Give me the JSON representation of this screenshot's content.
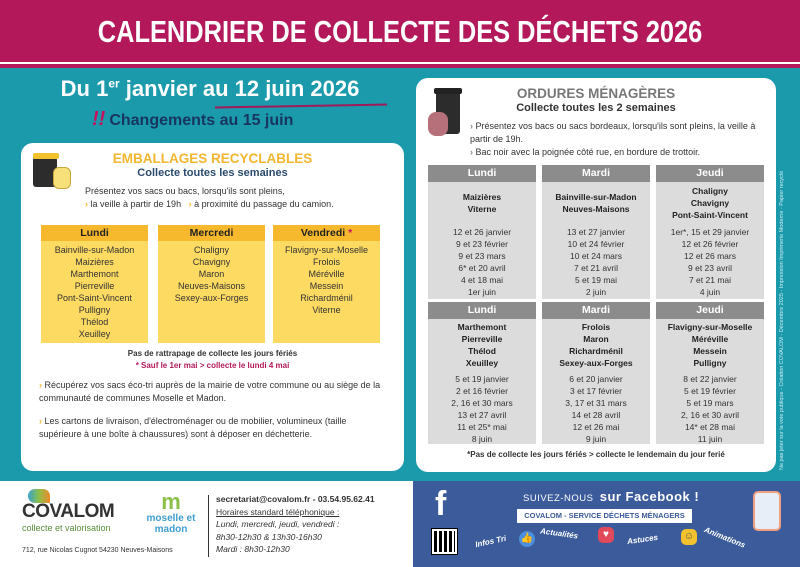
{
  "header": {
    "title": "CALENDRIER DE COLLECTE DES DÉCHETS 2026"
  },
  "period": {
    "prefix": "Du 1",
    "sup": "er",
    "rest": " janvier au 12 juin 2026",
    "changes": "Changements au 15 juin"
  },
  "recyclables": {
    "title": "EMBALLAGES RECYCLABLES",
    "subtitle": "Collecte toutes les semaines",
    "intro": "Présentez vos sacs ou bacs, lorsqu'ils sont pleins,",
    "hint1": "la veille à partir de 19h",
    "hint2": "à proximité du passage du camion.",
    "columns": [
      {
        "day": "Lundi",
        "star": "",
        "towns": [
          "Bainville-sur-Madon",
          "Maizières",
          "Marthemont",
          "Pierreville",
          "Pont-Saint-Vincent",
          "Pulligny",
          "Thélod",
          "Xeuilley"
        ]
      },
      {
        "day": "Mercredi",
        "star": "",
        "towns": [
          "Chaligny",
          "Chavigny",
          "Maron",
          "Neuves-Maisons",
          "Sexey-aux-Forges"
        ]
      },
      {
        "day": "Vendredi",
        "star": "*",
        "towns": [
          "Flavigny-sur-Moselle",
          "Frolois",
          "Méréville",
          "Messein",
          "Richardménil",
          "Viterne"
        ]
      }
    ],
    "note": "Pas de rattrapage de collecte les jours fériés",
    "note2": "* Sauf le 1er mai  > collecte le lundi 4 mai",
    "info1": "Récupérez vos sacs éco-tri auprès de la mairie de votre commune ou au siège de la communauté de communes Moselle et Madon.",
    "info2": "Les cartons de livraison, d'électroménager ou de mobilier, volumineux (taille supérieure à une boîte à chaussures) sont à déposer en déchetterie."
  },
  "ordures": {
    "title": "ORDURES MÉNAGÈRES",
    "subtitle": "Collecte toutes les 2 semaines",
    "info1": "Présentez vos bacs ou sacs bordeaux, lorsqu'ils sont pleins, la veille à partir de 19h.",
    "info2": "Bac noir avec la poignée côté rue, en bordure de trottoir.",
    "rows": [
      [
        {
          "day": "Lundi",
          "towns": [
            "Maizières",
            "Viterne"
          ],
          "dates": [
            "12 et 26 janvier",
            "9 et 23 février",
            "9 et 23 mars",
            "6* et 20 avril",
            "4 et 18 mai",
            "1er juin"
          ]
        },
        {
          "day": "Mardi",
          "towns": [
            "Bainville-sur-Madon",
            "Neuves-Maisons"
          ],
          "dates": [
            "13 et 27 janvier",
            "10 et 24 février",
            "10 et 24 mars",
            "7 et 21 avril",
            "5 et 19 mai",
            "2 juin"
          ]
        },
        {
          "day": "Jeudi",
          "towns": [
            "Chaligny",
            "Chavigny",
            "Pont-Saint-Vincent"
          ],
          "dates": [
            "1er*, 15 et 29 janvier",
            "12 et 26 février",
            "12 et 26 mars",
            "9 et 23 avril",
            "7 et 21 mai",
            "4 juin"
          ]
        }
      ],
      [
        {
          "day": "Lundi",
          "towns": [
            "Marthemont",
            "Pierreville",
            "Thélod",
            "Xeuilley"
          ],
          "dates": [
            "5 et 19 janvier",
            "2 et 16 février",
            "2, 16 et 30 mars",
            "13 et 27 avril",
            "11 et 25* mai",
            "8 juin"
          ]
        },
        {
          "day": "Mardi",
          "towns": [
            "Frolois",
            "Maron",
            "Richardménil",
            "Sexey-aux-Forges"
          ],
          "dates": [
            "6 et 20 janvier",
            "3 et 17 février",
            "3, 17 et 31 mars",
            "14 et 28 avril",
            "12 et 26 mai",
            "9 juin"
          ]
        },
        {
          "day": "Jeudi",
          "towns": [
            "Flavigny-sur-Moselle",
            "Méréville",
            "Messein",
            "Pulligny"
          ],
          "dates": [
            "8 et 22 janvier",
            "5 et 19 février",
            "5 et 19 mars",
            "2, 16 et 30 avril",
            "14* et 28 mai",
            "11 juin"
          ]
        }
      ]
    ],
    "note": "*Pas de collecte les jours fériés > collecte le lendemain du jour ferié"
  },
  "side_text": "Ne pas jeter sur la voie publique - Création COVALOM - Décembre 2025 - Impression Imprimerie Moderne - Papier recyclé",
  "footer": {
    "logo_name": "COVALOM",
    "logo_tag": "collecte et valorisation",
    "partner_logo": "moselle et madon",
    "address": "712, rue Nicolas Cugnot 54230 Neuves-Maisons",
    "contact": "secretariat@covalom.fr - 03.54.95.62.41",
    "hours_title": "Horaires standard téléphonique :",
    "hours": [
      "Lundi, mercredi, jeudi, vendredi :",
      "8h30-12h30 & 13h30-16h30",
      "Mardi : 8h30-12h30"
    ]
  },
  "facebook": {
    "follow": "SUIVEZ-NOUS",
    "follow_bold": "sur Facebook !",
    "page": "COVALOM - SERVICE DÉCHETS MÉNAGERS",
    "tags": [
      "Infos Tri",
      "Actualités",
      "Astuces",
      "Animations"
    ]
  },
  "colors": {
    "magenta": "#b3195a",
    "teal": "#1b9aac",
    "yellow": "#fdda62",
    "yellow_header": "#f6b82d",
    "grey_header": "#8c8c8c",
    "facebook": "#3b5b9a"
  }
}
